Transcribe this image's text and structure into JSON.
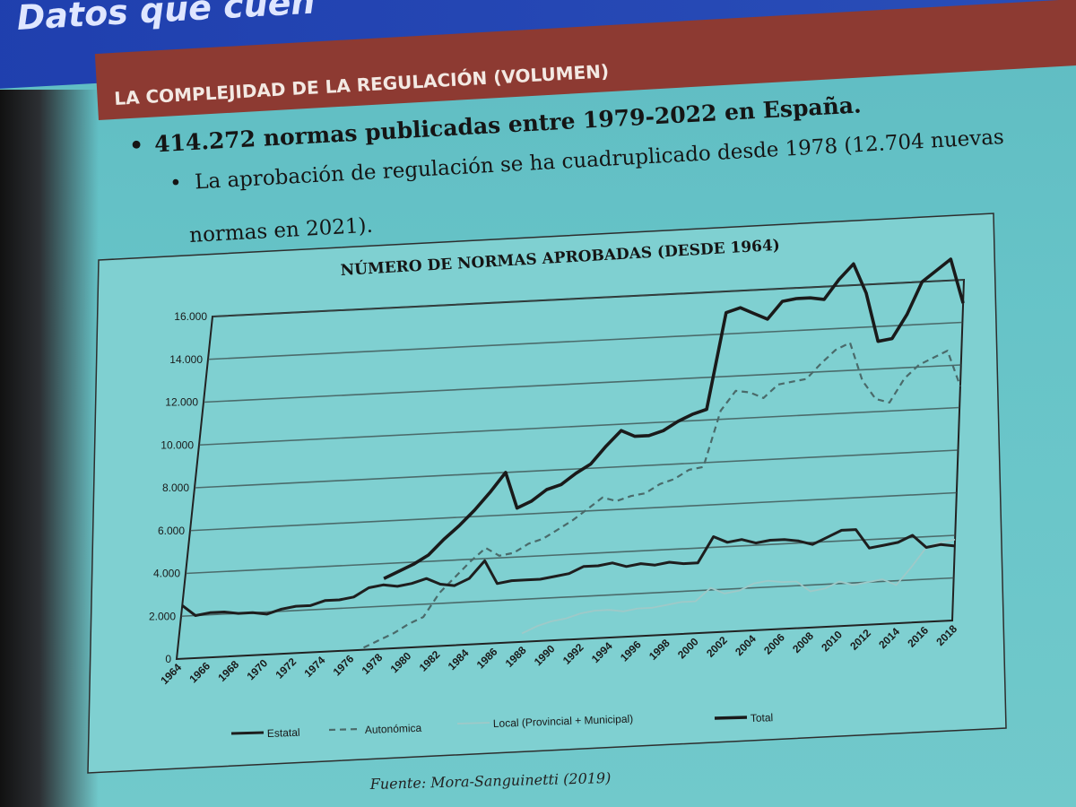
{
  "slide": {
    "title": "Datos que cuen",
    "section": "LA COMPLEJIDAD DE LA REGULACIÓN (VOLUMEN)",
    "bullet1": "414.272 normas publicadas entre 1979-2022 en España.",
    "bullet2": "La aprobación de regulación se ha cuadruplicado desde 1978 (12.704 nuevas",
    "bullet3": "normas en 2021).",
    "source": "Fuente: Mora-Sanguinetti (2019)"
  },
  "chart_data": {
    "type": "line",
    "title": "NÚMERO DE NORMAS APROBADAS (DESDE 1964)",
    "xlabel": "",
    "ylabel": "",
    "ylim": [
      0,
      16000
    ],
    "yticks": [
      0,
      2000,
      4000,
      6000,
      8000,
      10000,
      12000,
      14000,
      16000
    ],
    "ytick_labels": [
      "0",
      "2.000",
      "4.000",
      "6.000",
      "8.000",
      "10.000",
      "12.000",
      "14.000",
      "16.000"
    ],
    "x": [
      1964,
      1965,
      1966,
      1967,
      1968,
      1969,
      1970,
      1971,
      1972,
      1973,
      1974,
      1975,
      1976,
      1977,
      1978,
      1979,
      1980,
      1981,
      1982,
      1983,
      1984,
      1985,
      1986,
      1987,
      1988,
      1989,
      1990,
      1991,
      1992,
      1993,
      1994,
      1995,
      1996,
      1997,
      1998,
      1999,
      2000,
      2001,
      2002,
      2003,
      2004,
      2005,
      2006,
      2007,
      2008,
      2009,
      2010,
      2011,
      2012,
      2013,
      2014,
      2015,
      2016,
      2017,
      2018
    ],
    "xtick_labels": [
      "1964",
      "1966",
      "1968",
      "1970",
      "1972",
      "1974",
      "1976",
      "1978",
      "1980",
      "1982",
      "1984",
      "1986",
      "1988",
      "1990",
      "1992",
      "1994",
      "1996",
      "1998",
      "2000",
      "2002",
      "2004",
      "2006",
      "2008",
      "2010",
      "2012",
      "2014",
      "2016",
      "2018"
    ],
    "grid": true,
    "legend_position": "bottom",
    "series": [
      {
        "name": "Estatal",
        "style": "solid",
        "values": [
          2500,
          2000,
          2100,
          2100,
          2000,
          2000,
          1900,
          2100,
          2200,
          2200,
          2400,
          2400,
          2500,
          2900,
          3000,
          2900,
          3000,
          3200,
          2900,
          2800,
          3100,
          3900,
          2800,
          2900,
          2900,
          2900,
          3000,
          3100,
          3400,
          3400,
          3500,
          3300,
          3400,
          3300,
          3400,
          3300,
          3300,
          4500,
          4200,
          4300,
          4100,
          4200,
          4200,
          4100,
          3900,
          4200,
          4500,
          4500,
          3600,
          3700,
          3800,
          4100,
          3500,
          3600,
          3500
        ]
      },
      {
        "name": "Autonómica",
        "style": "dashed",
        "values": [
          null,
          null,
          null,
          null,
          null,
          null,
          null,
          null,
          null,
          null,
          null,
          null,
          null,
          100,
          400,
          700,
          1100,
          1400,
          2500,
          3200,
          3900,
          4500,
          4100,
          4200,
          4600,
          4800,
          5200,
          5600,
          6100,
          6600,
          6400,
          6600,
          6700,
          7100,
          7300,
          7700,
          7800,
          10400,
          11300,
          11200,
          10900,
          11500,
          11600,
          11700,
          12400,
          13000,
          13300,
          11500,
          10600,
          10400,
          11500,
          12100,
          12400,
          12700,
          11000
        ]
      },
      {
        "name": "Local (Provincial + Municipal)",
        "style": "thin",
        "values": [
          null,
          null,
          null,
          null,
          null,
          null,
          null,
          null,
          null,
          null,
          null,
          null,
          null,
          null,
          null,
          null,
          null,
          null,
          null,
          null,
          null,
          null,
          null,
          null,
          400,
          700,
          900,
          1000,
          1200,
          1300,
          1300,
          1200,
          1300,
          1300,
          1400,
          1500,
          1500,
          2100,
          1800,
          1900,
          2200,
          2300,
          2200,
          2200,
          1700,
          1800,
          2100,
          1900,
          2000,
          2100,
          1800,
          2600,
          3500,
          3700,
          3800
        ]
      },
      {
        "name": "Total",
        "style": "bold",
        "values": [
          null,
          null,
          null,
          null,
          null,
          null,
          null,
          null,
          null,
          null,
          null,
          null,
          null,
          null,
          3300,
          3600,
          3900,
          4300,
          5000,
          5600,
          6300,
          7100,
          8000,
          6300,
          6600,
          7100,
          7300,
          7800,
          8200,
          9000,
          9700,
          9400,
          9400,
          9600,
          10000,
          10300,
          10500,
          15000,
          15200,
          14900,
          14600,
          15400,
          15500,
          15500,
          15400,
          16300,
          17000,
          15600,
          13300,
          13400,
          14500,
          16000,
          16500,
          17000,
          14900
        ]
      }
    ]
  }
}
